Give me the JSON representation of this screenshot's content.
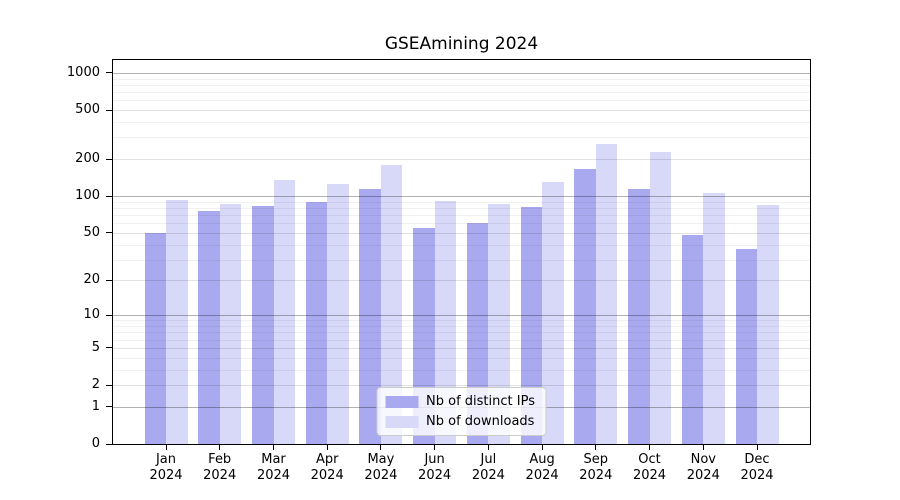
{
  "chart_data": {
    "type": "bar",
    "title": "GSEAmining 2024",
    "categories": [
      "Jan",
      "Feb",
      "Mar",
      "Apr",
      "May",
      "Jun",
      "Jul",
      "Aug",
      "Sep",
      "Oct",
      "Nov",
      "Dec"
    ],
    "x_year": "2024",
    "series": [
      {
        "name": "Nb of distinct IPs",
        "color": "#a9a9ef",
        "values": [
          50,
          76,
          83,
          90,
          114,
          55,
          60,
          81,
          167,
          114,
          48,
          37
        ]
      },
      {
        "name": "Nb of downloads",
        "color": "#d8d8f8",
        "values": [
          93,
          87,
          135,
          125,
          179,
          91,
          86,
          130,
          266,
          228,
          106,
          84
        ]
      }
    ],
    "yscale": "log1p",
    "yticks": [
      0,
      1,
      2,
      5,
      10,
      20,
      50,
      100,
      200,
      500,
      1000
    ],
    "ylim": [
      0,
      1270
    ],
    "grid": true,
    "legend": {
      "position": "lower center",
      "entries": [
        "Nb of distinct IPs",
        "Nb of downloads"
      ]
    },
    "colors": {
      "bar_distinct_ips": "#a9a9ef",
      "bar_downloads": "#d8d8f8",
      "spine": "#000000",
      "background": "#ffffff"
    }
  }
}
